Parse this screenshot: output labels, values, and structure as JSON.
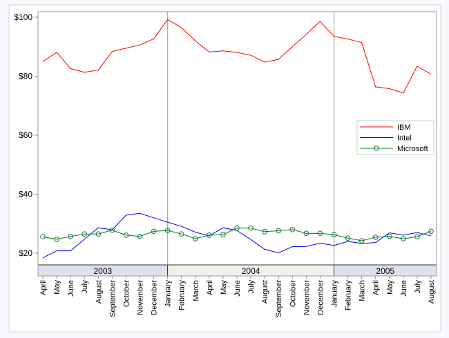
{
  "chart_data": {
    "type": "line",
    "title": "",
    "xlabel": "",
    "ylabel": "",
    "ylim": [
      16.3,
      101.9
    ],
    "yticks": [
      "$20",
      "$40",
      "$60",
      "$80",
      "$100"
    ],
    "ytick_values": [
      20,
      40,
      60,
      80,
      100
    ],
    "years": [
      {
        "label": "2003",
        "months": 9
      },
      {
        "label": "2004",
        "months": 12
      },
      {
        "label": "2005",
        "months": 8
      }
    ],
    "categories": [
      "April",
      "May",
      "June",
      "July",
      "August",
      "September",
      "October",
      "November",
      "December",
      "January",
      "February",
      "March",
      "April",
      "May",
      "June",
      "July",
      "August",
      "September",
      "October",
      "November",
      "December",
      "January",
      "February",
      "March",
      "April",
      "May",
      "June",
      "July",
      "August"
    ],
    "legend_position": "right",
    "series": [
      {
        "name": "IBM",
        "color": "#ff0000",
        "marker": "none",
        "values": [
          85.0,
          88.1,
          82.6,
          81.3,
          82.1,
          88.4,
          89.5,
          90.6,
          92.7,
          99.2,
          96.5,
          92.0,
          88.2,
          88.6,
          88.1,
          87.1,
          84.8,
          85.7,
          90.0,
          94.2,
          98.6,
          93.5,
          92.6,
          91.4,
          76.4,
          75.8,
          74.3,
          83.4,
          80.7
        ]
      },
      {
        "name": "Intel",
        "color": "#0000ff",
        "marker": "none",
        "values": [
          18.4,
          20.8,
          20.8,
          24.7,
          28.6,
          27.9,
          32.9,
          33.5,
          32.0,
          30.5,
          29.1,
          27.1,
          25.9,
          28.6,
          27.7,
          24.6,
          21.3,
          20.1,
          22.2,
          22.3,
          23.4,
          22.6,
          24.0,
          23.3,
          23.6,
          26.9,
          26.1,
          27.0,
          25.9
        ]
      },
      {
        "name": "Microsoft",
        "color": "#008000",
        "marker": "circle",
        "values": [
          25.6,
          24.7,
          25.7,
          26.5,
          26.5,
          27.8,
          26.1,
          25.7,
          27.4,
          27.7,
          26.5,
          24.9,
          26.1,
          26.3,
          28.5,
          28.5,
          27.3,
          27.6,
          28.0,
          26.7,
          26.7,
          26.3,
          25.1,
          24.2,
          25.4,
          25.7,
          24.9,
          25.6,
          27.4
        ]
      }
    ]
  }
}
